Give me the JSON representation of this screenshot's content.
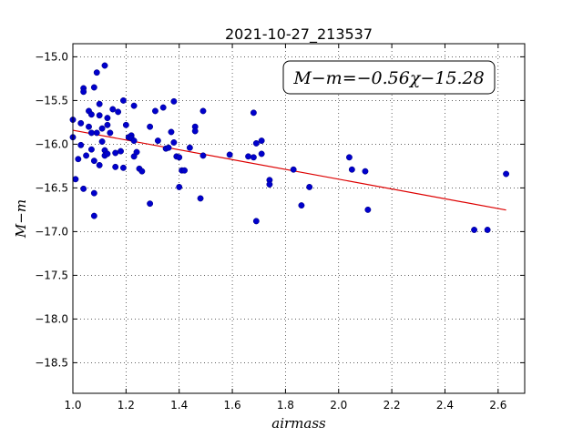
{
  "chart_data": {
    "type": "scatter",
    "title": "2021-10-27_213537",
    "xlabel": "airmass",
    "ylabel": "M−m",
    "xlim": [
      1.0,
      2.7
    ],
    "ylim": [
      -18.85,
      -14.85
    ],
    "y_inverted": true,
    "grid": true,
    "x_ticks": [
      "1.0",
      "1.2",
      "1.4",
      "1.6",
      "1.8",
      "2.0",
      "2.2",
      "2.4",
      "2.6"
    ],
    "y_ticks": [
      "−15.0",
      "−15.5",
      "−16.0",
      "−16.5",
      "−17.0",
      "−17.5",
      "−18.0",
      "−18.5"
    ],
    "annotation": "M−m=−0.56χ−15.28",
    "annotation_position": "top-right",
    "point_color": "#0000cc",
    "fit_color": "#dd0000",
    "fit": {
      "slope": -0.56,
      "intercept": -15.28,
      "x_range": [
        1.0,
        2.63
      ]
    },
    "points": [
      [
        1.0,
        -15.72
      ],
      [
        1.0,
        -15.92
      ],
      [
        1.01,
        -16.4
      ],
      [
        1.02,
        -16.17
      ],
      [
        1.03,
        -16.01
      ],
      [
        1.03,
        -15.76
      ],
      [
        1.04,
        -15.36
      ],
      [
        1.04,
        -15.4
      ],
      [
        1.04,
        -16.51
      ],
      [
        1.05,
        -16.13
      ],
      [
        1.06,
        -15.62
      ],
      [
        1.06,
        -15.8
      ],
      [
        1.07,
        -15.66
      ],
      [
        1.07,
        -15.87
      ],
      [
        1.07,
        -16.06
      ],
      [
        1.08,
        -15.35
      ],
      [
        1.08,
        -16.19
      ],
      [
        1.08,
        -16.56
      ],
      [
        1.08,
        -16.82
      ],
      [
        1.09,
        -15.18
      ],
      [
        1.09,
        -15.87
      ],
      [
        1.1,
        -15.54
      ],
      [
        1.1,
        -15.67
      ],
      [
        1.1,
        -16.24
      ],
      [
        1.11,
        -15.82
      ],
      [
        1.11,
        -15.97
      ],
      [
        1.12,
        -15.1
      ],
      [
        1.12,
        -16.07
      ],
      [
        1.12,
        -16.13
      ],
      [
        1.13,
        -15.7
      ],
      [
        1.13,
        -15.78
      ],
      [
        1.13,
        -16.11
      ],
      [
        1.14,
        -15.87
      ],
      [
        1.15,
        -15.6
      ],
      [
        1.16,
        -16.1
      ],
      [
        1.16,
        -16.26
      ],
      [
        1.17,
        -15.63
      ],
      [
        1.18,
        -16.08
      ],
      [
        1.19,
        -16.27
      ],
      [
        1.19,
        -15.5
      ],
      [
        1.2,
        -15.78
      ],
      [
        1.21,
        -15.92
      ],
      [
        1.22,
        -15.9
      ],
      [
        1.22,
        -15.93
      ],
      [
        1.23,
        -15.96
      ],
      [
        1.23,
        -16.14
      ],
      [
        1.23,
        -15.56
      ],
      [
        1.24,
        -16.09
      ],
      [
        1.25,
        -16.28
      ],
      [
        1.26,
        -16.31
      ],
      [
        1.29,
        -15.8
      ],
      [
        1.29,
        -16.68
      ],
      [
        1.31,
        -15.62
      ],
      [
        1.32,
        -15.96
      ],
      [
        1.34,
        -15.58
      ],
      [
        1.35,
        -16.05
      ],
      [
        1.36,
        -16.04
      ],
      [
        1.37,
        -15.86
      ],
      [
        1.38,
        -15.51
      ],
      [
        1.38,
        -15.98
      ],
      [
        1.39,
        -16.14
      ],
      [
        1.4,
        -16.15
      ],
      [
        1.4,
        -16.49
      ],
      [
        1.41,
        -16.3
      ],
      [
        1.42,
        -16.3
      ],
      [
        1.44,
        -16.04
      ],
      [
        1.46,
        -15.8
      ],
      [
        1.46,
        -15.85
      ],
      [
        1.48,
        -16.62
      ],
      [
        1.49,
        -16.13
      ],
      [
        1.49,
        -15.62
      ],
      [
        1.59,
        -16.12
      ],
      [
        1.66,
        -16.14
      ],
      [
        1.68,
        -16.15
      ],
      [
        1.68,
        -15.64
      ],
      [
        1.69,
        -15.99
      ],
      [
        1.69,
        -16.88
      ],
      [
        1.71,
        -15.96
      ],
      [
        1.71,
        -16.11
      ],
      [
        1.74,
        -16.41
      ],
      [
        1.74,
        -16.46
      ],
      [
        1.83,
        -16.29
      ],
      [
        1.86,
        -16.7
      ],
      [
        1.89,
        -16.49
      ],
      [
        2.04,
        -16.15
      ],
      [
        2.05,
        -16.29
      ],
      [
        2.1,
        -16.31
      ],
      [
        2.11,
        -16.75
      ],
      [
        2.51,
        -16.98
      ],
      [
        2.56,
        -16.98
      ],
      [
        2.63,
        -16.34
      ]
    ]
  }
}
